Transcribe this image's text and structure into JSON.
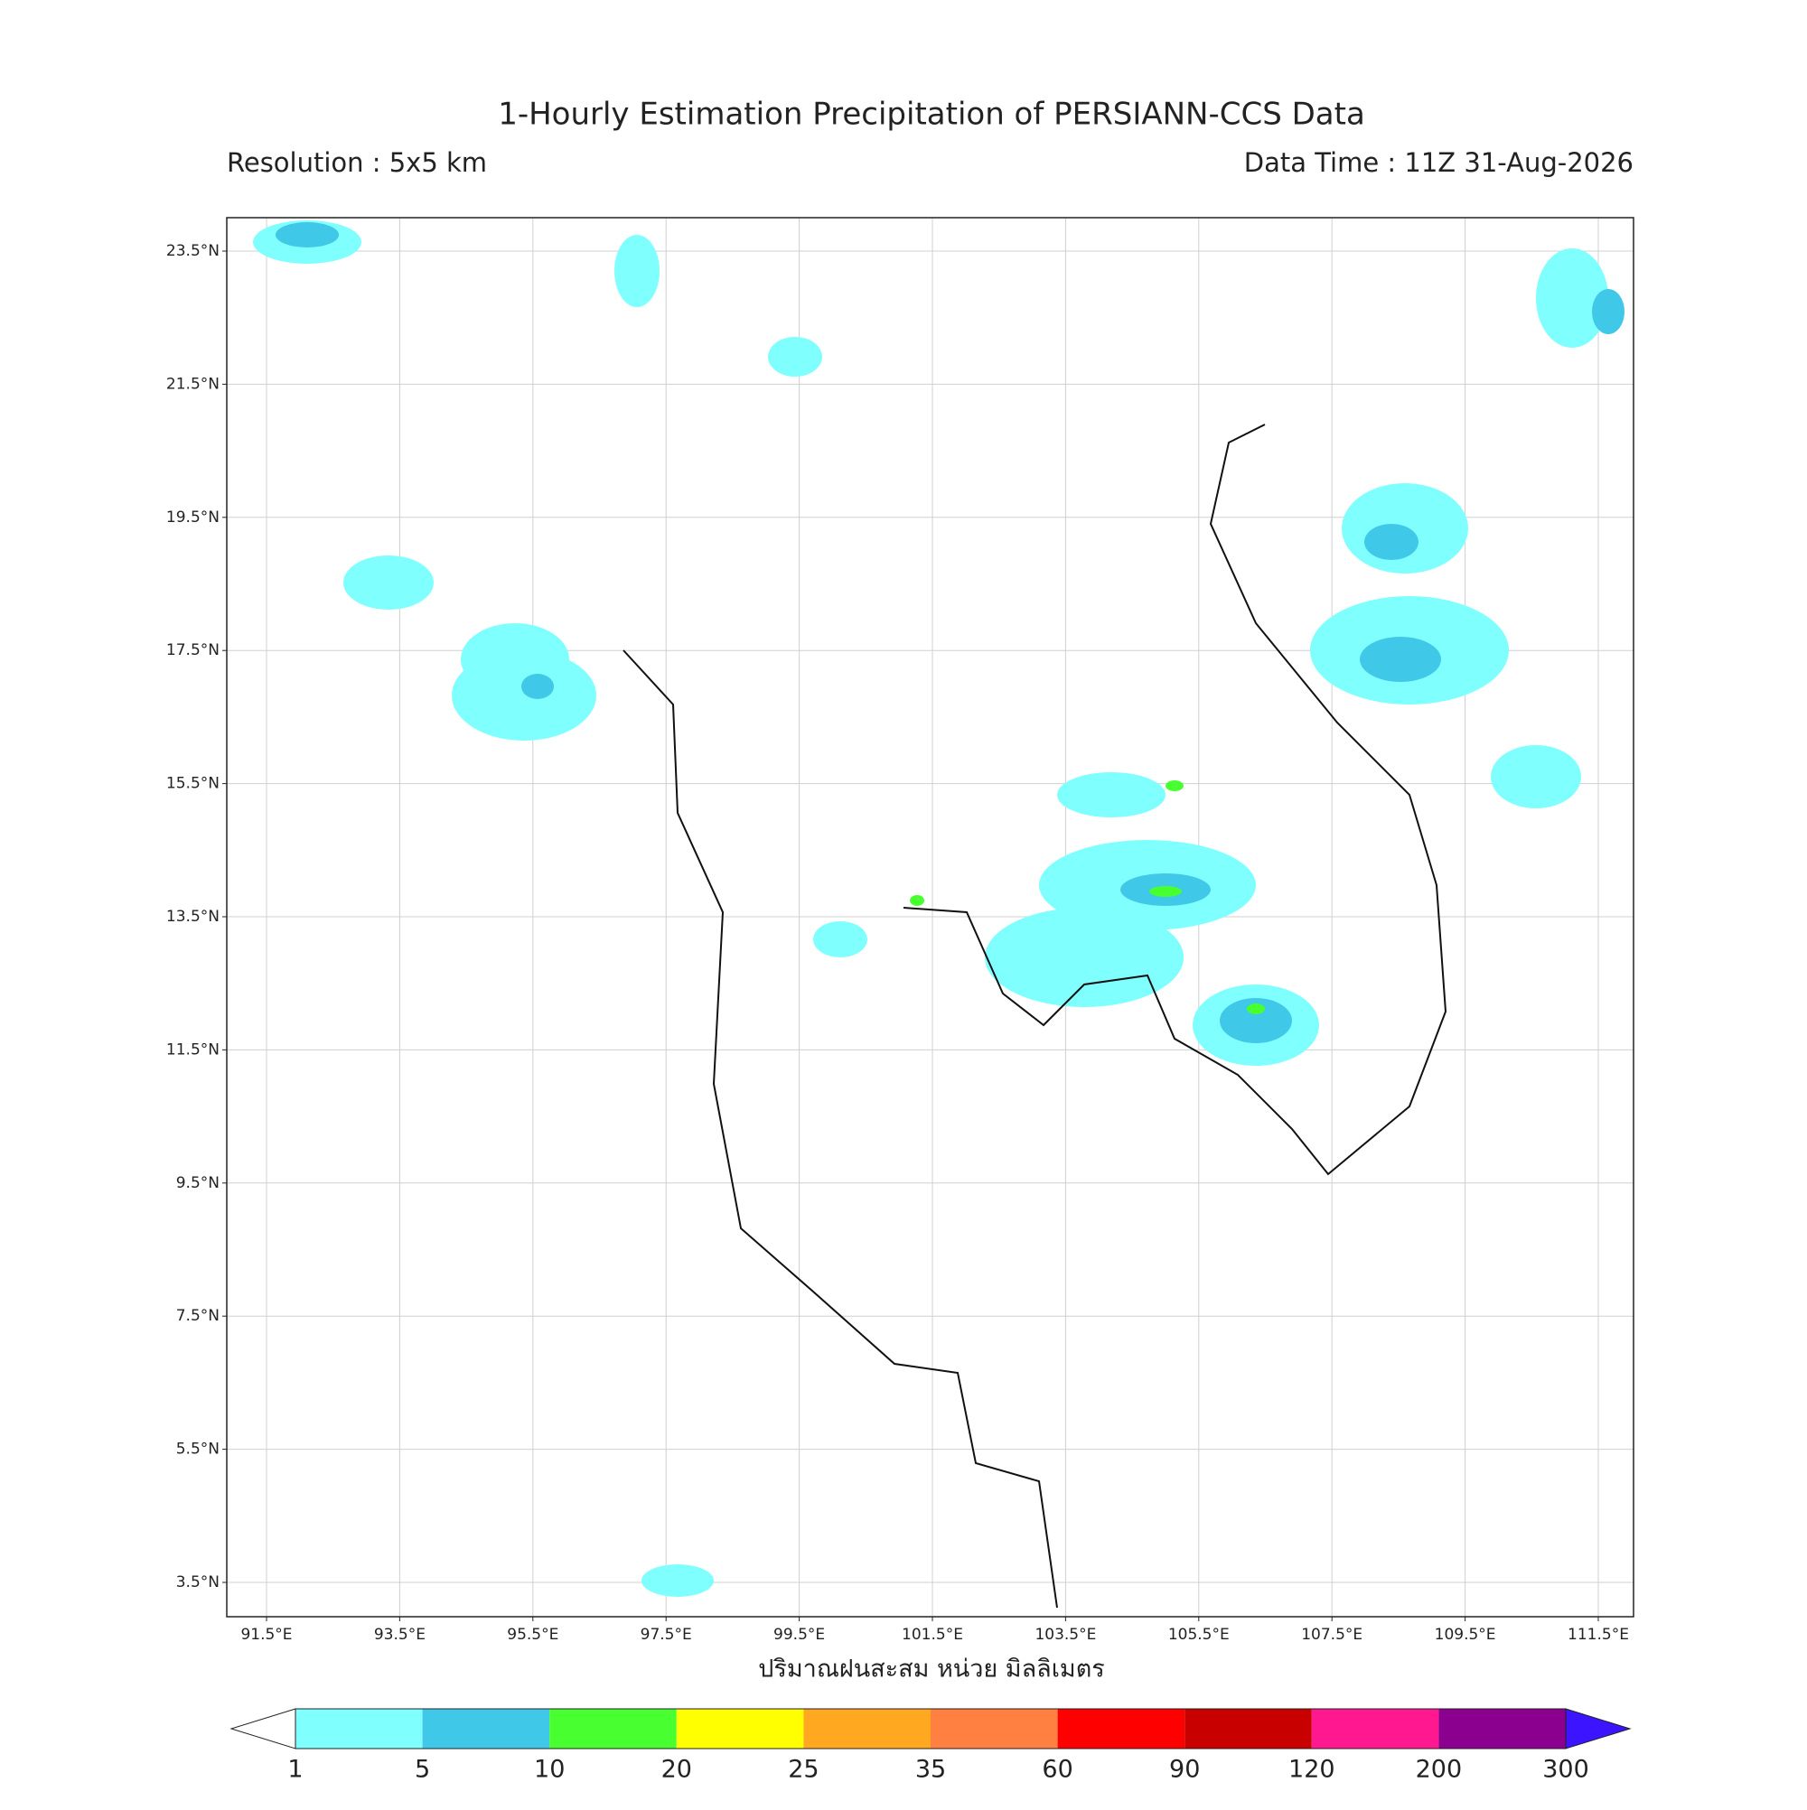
{
  "header": {
    "title": "1-Hourly Estimation Precipitation of PERSIANN-CCS Data",
    "resolution": "Resolution : 5x5 km",
    "data_time": "Data Time : 11Z 31-Aug-2026"
  },
  "map": {
    "lat_labels": [
      "23.5°N",
      "21.5°N",
      "19.5°N",
      "17.5°N",
      "15.5°N",
      "13.5°N",
      "11.5°N",
      "9.5°N",
      "7.5°N",
      "5.5°N",
      "3.5°N"
    ],
    "lon_labels": [
      "91.5°E",
      "93.5°E",
      "95.5°E",
      "97.5°E",
      "99.5°E",
      "101.5°E",
      "103.5°E",
      "105.5°E",
      "107.5°E",
      "109.5°E",
      "111.5°E"
    ],
    "x_label": "ปริมาณฝนสะสม หน่วย มิลลิเมตร"
  },
  "colorbar": {
    "levels": [
      "1",
      "5",
      "10",
      "20",
      "25",
      "35",
      "60",
      "90",
      "120",
      "200",
      "300"
    ],
    "colors": [
      "#80ffff",
      "#40c8e8",
      "#48ff30",
      "#ffff00",
      "#ffa820",
      "#ff8040",
      "#ff0000",
      "#c80000",
      "#ff1890",
      "#8c0090"
    ],
    "under_color": "#ffffff",
    "over_color": "#3c14ff"
  }
}
